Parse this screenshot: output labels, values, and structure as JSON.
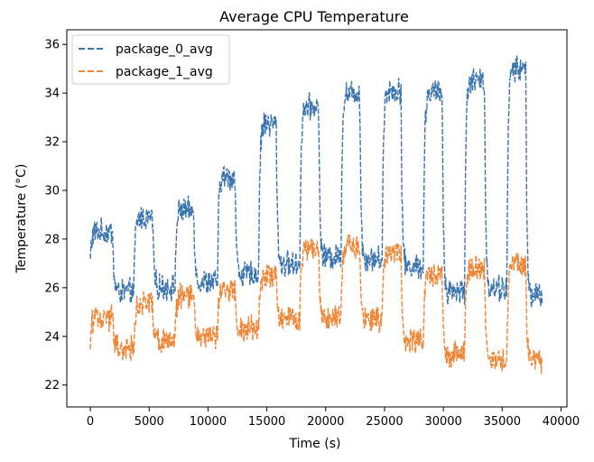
{
  "chart_data": {
    "type": "line",
    "title": "Average CPU Temperature",
    "xlabel": "Time (s)",
    "ylabel": "Temperature (°C)",
    "xlim": [
      -2000,
      40500
    ],
    "ylim": [
      21.1,
      36.6
    ],
    "x_ticks": [
      0,
      5000,
      10000,
      15000,
      20000,
      25000,
      30000,
      35000,
      40000
    ],
    "x_tick_labels": [
      "0",
      "5000",
      "10000",
      "15000",
      "20000",
      "25000",
      "30000",
      "35000",
      "40000"
    ],
    "y_ticks": [
      22,
      24,
      26,
      28,
      30,
      32,
      34,
      36
    ],
    "y_tick_labels": [
      "22",
      "24",
      "26",
      "28",
      "30",
      "32",
      "34",
      "36"
    ],
    "grid": false,
    "legend": "top-left",
    "segments": [
      {
        "start": 0,
        "end": 1900,
        "p0_high": 28.3,
        "p1_low": 24.8
      },
      {
        "start": 3700,
        "end": 5300,
        "p0_high": 28.9,
        "p1_low": 25.3
      },
      {
        "start": 7200,
        "end": 8800,
        "p0_high": 29.2,
        "p1_low": 25.7
      },
      {
        "start": 10800,
        "end": 12300,
        "p0_high": 30.6,
        "p1_low": 25.9
      },
      {
        "start": 14300,
        "end": 15800,
        "p0_high": 32.8,
        "p1_low": 26.5
      },
      {
        "start": 17800,
        "end": 19400,
        "p0_high": 33.5,
        "p1_low": 27.6
      },
      {
        "start": 21300,
        "end": 22900,
        "p0_high": 34.1,
        "p1_low": 27.7
      },
      {
        "start": 24800,
        "end": 26400,
        "p0_high": 34.2,
        "p1_low": 27.5
      },
      {
        "start": 28300,
        "end": 29900,
        "p0_high": 34.1,
        "p1_low": 26.6
      },
      {
        "start": 31800,
        "end": 33500,
        "p0_high": 34.6,
        "p1_low": 26.8
      },
      {
        "start": 35400,
        "end": 37000,
        "p0_high": 35.1,
        "p1_low": 27.0
      }
    ],
    "idle_segments": [
      {
        "start": 1900,
        "end": 3700,
        "p0_low": 25.8,
        "p1_high": 23.5
      },
      {
        "start": 5300,
        "end": 7200,
        "p0_low": 26.0,
        "p1_high": 23.8
      },
      {
        "start": 8800,
        "end": 10800,
        "p0_low": 26.2,
        "p1_high": 24.0
      },
      {
        "start": 12300,
        "end": 14300,
        "p0_low": 26.5,
        "p1_high": 24.3
      },
      {
        "start": 15800,
        "end": 17800,
        "p0_low": 26.9,
        "p1_high": 24.7
      },
      {
        "start": 19400,
        "end": 21300,
        "p0_low": 27.2,
        "p1_high": 24.8
      },
      {
        "start": 22900,
        "end": 24800,
        "p0_low": 27.1,
        "p1_high": 24.7
      },
      {
        "start": 26400,
        "end": 28300,
        "p0_low": 26.8,
        "p1_high": 23.8
      },
      {
        "start": 29900,
        "end": 31800,
        "p0_low": 25.8,
        "p1_high": 23.2
      },
      {
        "start": 33500,
        "end": 35400,
        "p0_low": 25.9,
        "p1_high": 23.0
      },
      {
        "start": 37000,
        "end": 38400,
        "p0_low": 25.6,
        "p1_high": 23.0
      }
    ],
    "series": [
      {
        "name": "package_0_avg",
        "color": "#3b75af",
        "line_style": "dashed"
      },
      {
        "name": "package_1_avg",
        "color": "#ef8636",
        "line_style": "dashed"
      }
    ]
  }
}
